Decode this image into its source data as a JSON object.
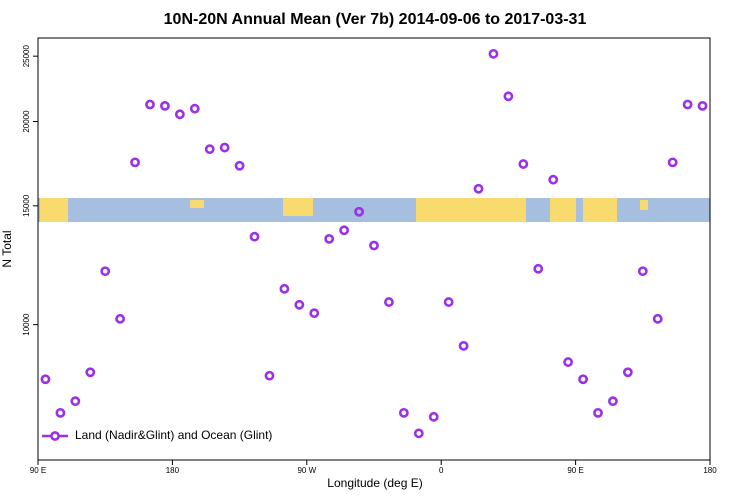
{
  "chart_data": {
    "type": "scatter",
    "title": "10N-20N Annual Mean (Ver 7b)   2014-09-06 to 2017-03-31",
    "x_label": "Longitude (deg E)",
    "y_label": "N Total",
    "log_y": true,
    "legend_position": "lower left",
    "series": [
      {
        "name": "Land (Nadir&Glint) and Ocean (Glint)",
        "color": "#9b30e8",
        "x": [
          95,
          105,
          115,
          125,
          135,
          145,
          155,
          165,
          175,
          185,
          195,
          205,
          215,
          225,
          235,
          245,
          255,
          265,
          275,
          285,
          295,
          305,
          315,
          325,
          335,
          345,
          355,
          365,
          375,
          385,
          395,
          405,
          415,
          425,
          435,
          445,
          455,
          465,
          475,
          485,
          495,
          505,
          515,
          525,
          535
        ],
        "values": [
          8300,
          7400,
          7700,
          8500,
          12000,
          10200,
          17400,
          21200,
          21100,
          20500,
          20900,
          18200,
          18300,
          17200,
          13500,
          8400,
          11300,
          10700,
          10400,
          13400,
          13800,
          14700,
          13100,
          10800,
          7400,
          6900,
          7300,
          10800,
          9300,
          15900,
          25200,
          21800,
          17300,
          12100,
          16400,
          8800,
          8300,
          7400,
          7700,
          8500,
          12000,
          10200,
          17400,
          21200,
          21100
        ]
      }
    ],
    "xlim": [
      90,
      540
    ],
    "xticks": [
      {
        "value": 90,
        "label": "90 E"
      },
      180,
      {
        "value": 270,
        "label": "90 W"
      },
      {
        "value": 360,
        "label": "0"
      },
      {
        "value": 450,
        "label": "90 E"
      },
      {
        "value": 540,
        "label": "180"
      }
    ],
    "ylim": [
      6300,
      26600
    ],
    "yticks": [
      10000,
      15000,
      20000,
      25000
    ]
  }
}
